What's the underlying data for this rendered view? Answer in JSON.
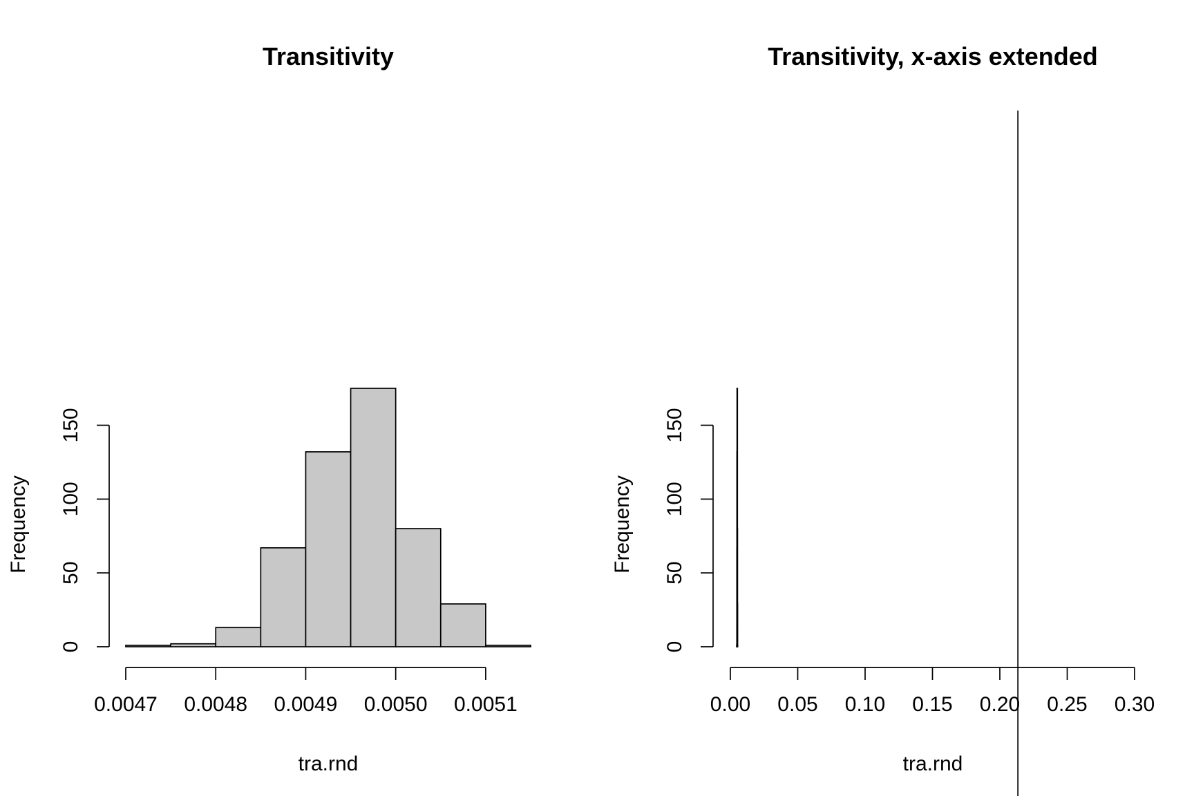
{
  "chart_data": [
    {
      "type": "bar",
      "title": "Transitivity",
      "xlabel": "tra.rnd",
      "ylabel": "Frequency",
      "bins": [
        {
          "from": 0.0047,
          "to": 0.00475,
          "count": 1
        },
        {
          "from": 0.00475,
          "to": 0.0048,
          "count": 2
        },
        {
          "from": 0.0048,
          "to": 0.00485,
          "count": 13
        },
        {
          "from": 0.00485,
          "to": 0.0049,
          "count": 67
        },
        {
          "from": 0.0049,
          "to": 0.00495,
          "count": 132
        },
        {
          "from": 0.00495,
          "to": 0.005,
          "count": 175
        },
        {
          "from": 0.005,
          "to": 0.00505,
          "count": 80
        },
        {
          "from": 0.00505,
          "to": 0.0051,
          "count": 29
        },
        {
          "from": 0.0051,
          "to": 0.00515,
          "count": 1
        }
      ],
      "xlim": [
        0.0047,
        0.00515
      ],
      "ylim": [
        0,
        175
      ],
      "xticks": [
        0.0047,
        0.0048,
        0.0049,
        0.005,
        0.0051
      ],
      "xtick_labels": [
        "0.0047",
        "0.0048",
        "0.0049",
        "0.0050",
        "0.0051"
      ],
      "yticks": [
        0,
        50,
        100,
        150
      ],
      "ytick_labels": [
        "0",
        "50",
        "100",
        "150"
      ],
      "grid": false
    },
    {
      "type": "bar",
      "title": "Transitivity, x-axis extended",
      "xlabel": "tra.rnd",
      "ylabel": "Frequency",
      "bins": [
        {
          "from": 0.0047,
          "to": 0.00475,
          "count": 1
        },
        {
          "from": 0.00475,
          "to": 0.0048,
          "count": 2
        },
        {
          "from": 0.0048,
          "to": 0.00485,
          "count": 13
        },
        {
          "from": 0.00485,
          "to": 0.0049,
          "count": 67
        },
        {
          "from": 0.0049,
          "to": 0.00495,
          "count": 132
        },
        {
          "from": 0.00495,
          "to": 0.005,
          "count": 175
        },
        {
          "from": 0.005,
          "to": 0.00505,
          "count": 80
        },
        {
          "from": 0.00505,
          "to": 0.0051,
          "count": 29
        },
        {
          "from": 0.0051,
          "to": 0.00515,
          "count": 1
        }
      ],
      "xlim": [
        0,
        0.3
      ],
      "ylim": [
        0,
        175
      ],
      "xticks": [
        0.0,
        0.05,
        0.1,
        0.15,
        0.2,
        0.25,
        0.3
      ],
      "xtick_labels": [
        "0.00",
        "0.05",
        "0.10",
        "0.15",
        "0.20",
        "0.25",
        "0.30"
      ],
      "yticks": [
        0,
        50,
        100,
        150
      ],
      "ytick_labels": [
        "0",
        "50",
        "100",
        "150"
      ],
      "vertical_line_x": 0.2134,
      "grid": false
    }
  ]
}
